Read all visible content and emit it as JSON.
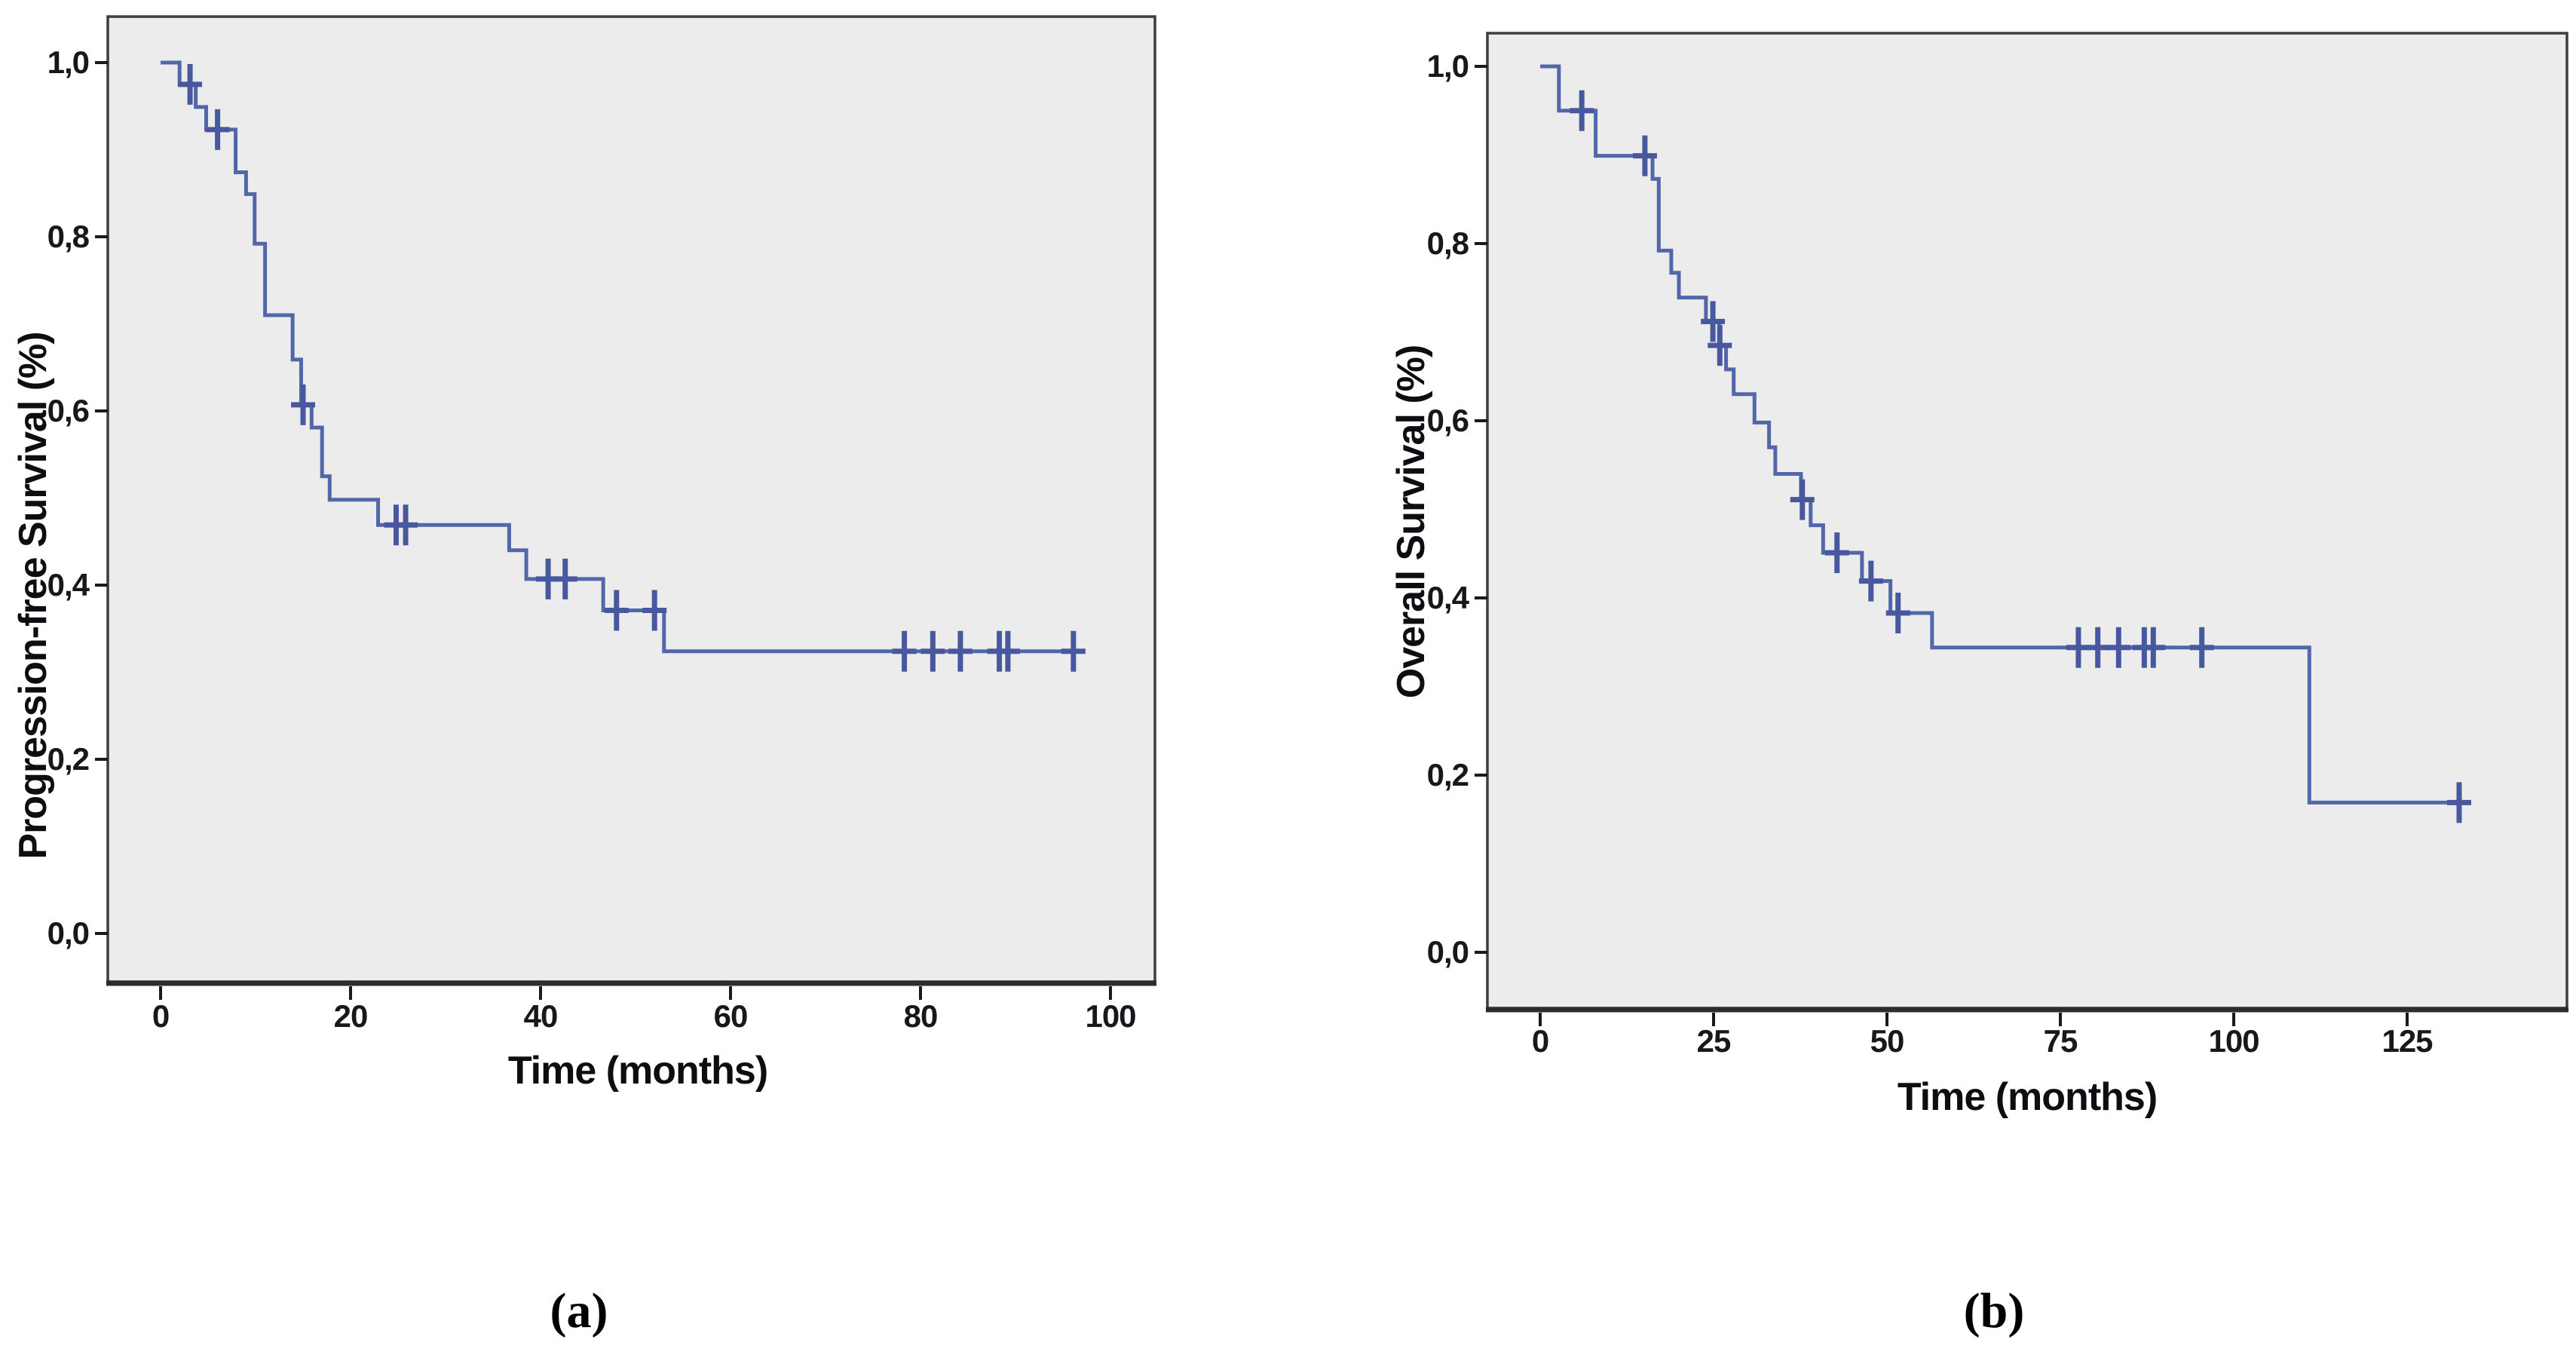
{
  "figure": {
    "background_color": "#ffffff",
    "panel_a_label": "(a)",
    "panel_b_label": "(b)"
  },
  "chart_data": [
    {
      "type": "line",
      "subtype": "kaplan-meier-step",
      "panel": "a",
      "title": "",
      "xlabel": "Time (months)",
      "ylabel": "Progression-free Survival (%)",
      "xlim": [
        -5.5,
        104.7
      ],
      "ylim": [
        -0.055,
        1.06
      ],
      "grid": false,
      "legend": "none",
      "x_ticks": [
        0,
        20,
        40,
        60,
        80,
        100
      ],
      "x_tick_labels": [
        "0",
        "20",
        "40",
        "60",
        "80",
        "100"
      ],
      "y_ticks": [
        1.0,
        0.8,
        0.6,
        0.4,
        0.2,
        0.0
      ],
      "y_tick_labels": [
        "1,0",
        "0,8",
        "0,6",
        "0,4",
        "0,2",
        "0,0"
      ],
      "plot_bg": "#ececec",
      "frame_color": "#3d3d3d",
      "frame_bottom_color": "#2c2c2c",
      "tick_color": "#1a1a1a",
      "line_color": "#5267a9",
      "censor_color": "#47589f",
      "km_steps": [
        [
          0,
          1.0
        ],
        [
          2,
          0.975
        ],
        [
          3.7,
          0.949
        ],
        [
          4.8,
          0.923
        ],
        [
          7.9,
          0.874
        ],
        [
          9,
          0.849
        ],
        [
          9.9,
          0.792
        ],
        [
          11,
          0.71
        ],
        [
          13.9,
          0.659
        ],
        [
          14.8,
          0.607
        ],
        [
          15.9,
          0.581
        ],
        [
          17,
          0.525
        ],
        [
          17.8,
          0.498
        ],
        [
          22.9,
          0.469
        ],
        [
          36.7,
          0.44
        ],
        [
          38.5,
          0.407
        ],
        [
          46.6,
          0.371
        ],
        [
          53,
          0.324
        ]
      ],
      "km_end_time": 97,
      "censor_marks": [
        [
          3.1,
          0.975
        ],
        [
          6,
          0.923
        ],
        [
          15,
          0.607
        ],
        [
          24.8,
          0.469
        ],
        [
          25.8,
          0.469
        ],
        [
          40.8,
          0.407
        ],
        [
          42.6,
          0.407
        ],
        [
          48,
          0.371
        ],
        [
          52,
          0.371
        ],
        [
          78.3,
          0.324
        ],
        [
          81.3,
          0.324
        ],
        [
          84.2,
          0.324
        ],
        [
          88.3,
          0.324
        ],
        [
          89.2,
          0.324
        ],
        [
          96.1,
          0.324
        ]
      ]
    },
    {
      "type": "line",
      "subtype": "kaplan-meier-step",
      "panel": "b",
      "title": "",
      "xlabel": "Time (months)",
      "ylabel": "Overall Survival (%)",
      "xlim": [
        -7.6,
        148
      ],
      "ylim": [
        -0.063,
        1.037
      ],
      "grid": false,
      "legend": "none",
      "x_ticks": [
        0,
        25,
        50,
        75,
        100,
        125
      ],
      "x_tick_labels": [
        "0",
        "25",
        "50",
        "75",
        "100",
        "125"
      ],
      "y_ticks": [
        1.0,
        0.8,
        0.6,
        0.4,
        0.2,
        0.0
      ],
      "y_tick_labels": [
        "1,0",
        "0,8",
        "0,6",
        "0,4",
        "0,2",
        "0,0"
      ],
      "plot_bg": "#ececec",
      "frame_color": "#3d3d3d",
      "frame_bottom_color": "#2c2c2c",
      "tick_color": "#1a1a1a",
      "line_color": "#5267a9",
      "censor_color": "#47589f",
      "km_steps": [
        [
          0,
          1.0
        ],
        [
          2.7,
          0.95
        ],
        [
          8,
          0.899
        ],
        [
          16.2,
          0.873
        ],
        [
          17.1,
          0.792
        ],
        [
          18.9,
          0.767
        ],
        [
          20,
          0.739
        ],
        [
          23.9,
          0.712
        ],
        [
          25.8,
          0.685
        ],
        [
          26.8,
          0.658
        ],
        [
          27.9,
          0.63
        ],
        [
          30.9,
          0.598
        ],
        [
          33,
          0.57
        ],
        [
          33.9,
          0.54
        ],
        [
          37.6,
          0.511
        ],
        [
          39,
          0.482
        ],
        [
          40.8,
          0.451
        ],
        [
          46.4,
          0.419
        ],
        [
          50.5,
          0.383
        ],
        [
          56.5,
          0.344
        ],
        [
          110.9,
          0.169
        ]
      ],
      "km_end_time": 133,
      "censor_marks": [
        [
          6,
          0.95
        ],
        [
          15.1,
          0.899
        ],
        [
          24.9,
          0.712
        ],
        [
          25.9,
          0.685
        ],
        [
          37.8,
          0.511
        ],
        [
          42.8,
          0.451
        ],
        [
          47.7,
          0.419
        ],
        [
          51.6,
          0.383
        ],
        [
          77.6,
          0.344
        ],
        [
          80.4,
          0.344
        ],
        [
          83.4,
          0.344
        ],
        [
          87.1,
          0.344
        ],
        [
          88.4,
          0.344
        ],
        [
          95.4,
          0.344
        ],
        [
          132.5,
          0.169
        ]
      ]
    }
  ]
}
